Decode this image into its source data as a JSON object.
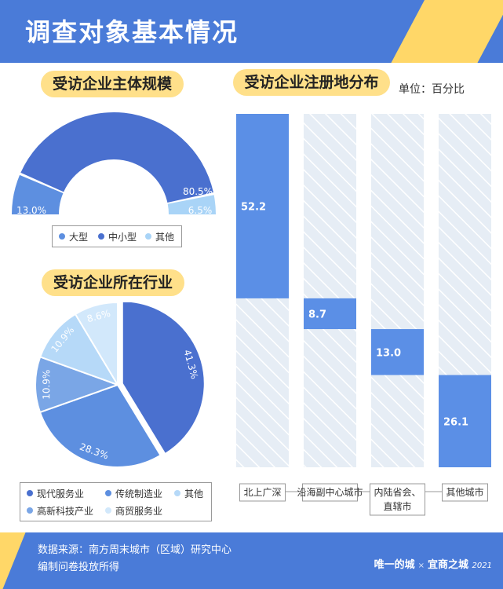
{
  "page": {
    "title": "调查对象基本情况",
    "unit": "单位：百分比",
    "source_line1": "数据来源：南方周末城市（区域）研究中心",
    "source_line2": "编制问卷投放所得",
    "brand": {
      "name1": "唯一的城",
      "sep": "×",
      "name2": "宜商之城",
      "year": "2021"
    }
  },
  "colors": {
    "primary": "#4a7bd8",
    "accent_yellow": "#ffe08a",
    "bar_fill": "#5b8fe6",
    "bar_bg": "#e6edf5"
  },
  "chart_data": [
    {
      "type": "pie",
      "subtype": "semi-donut",
      "title": "受访企业主体规模",
      "categories": [
        "大型",
        "中小型",
        "其他"
      ],
      "values": [
        13.0,
        80.5,
        6.5
      ],
      "labels": [
        "13.0%",
        "80.5%",
        "6.5%"
      ],
      "colors": [
        "#5d8fe0",
        "#4a70cf",
        "#a9d4f7"
      ]
    },
    {
      "type": "pie",
      "title": "受访企业所在行业",
      "categories": [
        "现代服务业",
        "传统制造业",
        "其他",
        "高新科技产业",
        "商贸服务业"
      ],
      "values": [
        41.3,
        28.3,
        10.9,
        10.9,
        8.6
      ],
      "labels": [
        "41.3%",
        "28.3%",
        "10.9%",
        "10.9%",
        "8.6%"
      ],
      "colors": [
        "#4a70cf",
        "#5d8fe0",
        "#7aa6e6",
        "#b6d9f8",
        "#d2e8fb"
      ],
      "legend_order": [
        "现代服务业",
        "传统制造业",
        "其他",
        "高新科技产业",
        "商贸服务业"
      ]
    },
    {
      "type": "bar",
      "subtype": "floating-range",
      "title": "受访企业注册地分布",
      "categories": [
        "北上广深",
        "沿海副中心城市",
        "内陆省会、直辖市",
        "其他城市"
      ],
      "values": [
        52.2,
        8.7,
        13.0,
        26.1
      ],
      "labels": [
        "52.2",
        "8.7",
        "13.0",
        "26.1"
      ],
      "ylim": [
        0,
        100
      ]
    }
  ]
}
